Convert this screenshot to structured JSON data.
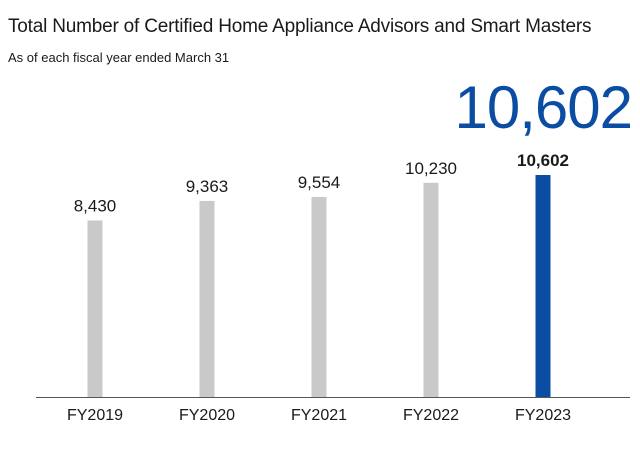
{
  "title": "Total Number of Certified Home Appliance Advisors and Smart Masters",
  "subtitle": "As of each fiscal year ended March 31",
  "callout": "10,602",
  "colors": {
    "highlight": "#0b4da2",
    "bar": "#c8c9cb",
    "axis": "#555555",
    "text": "#1a1a1a"
  },
  "chart_data": {
    "type": "bar",
    "categories": [
      "FY2019",
      "FY2020",
      "FY2021",
      "FY2022",
      "FY2023"
    ],
    "values": [
      8430,
      9363,
      9554,
      10230,
      10602
    ],
    "value_labels": [
      "8,430",
      "9,363",
      "9,554",
      "10,230",
      "10,602"
    ],
    "highlight_index": 4,
    "xlabel": "",
    "ylabel": "",
    "ylim": [
      0,
      10602
    ],
    "grid": false,
    "legend": "none"
  }
}
